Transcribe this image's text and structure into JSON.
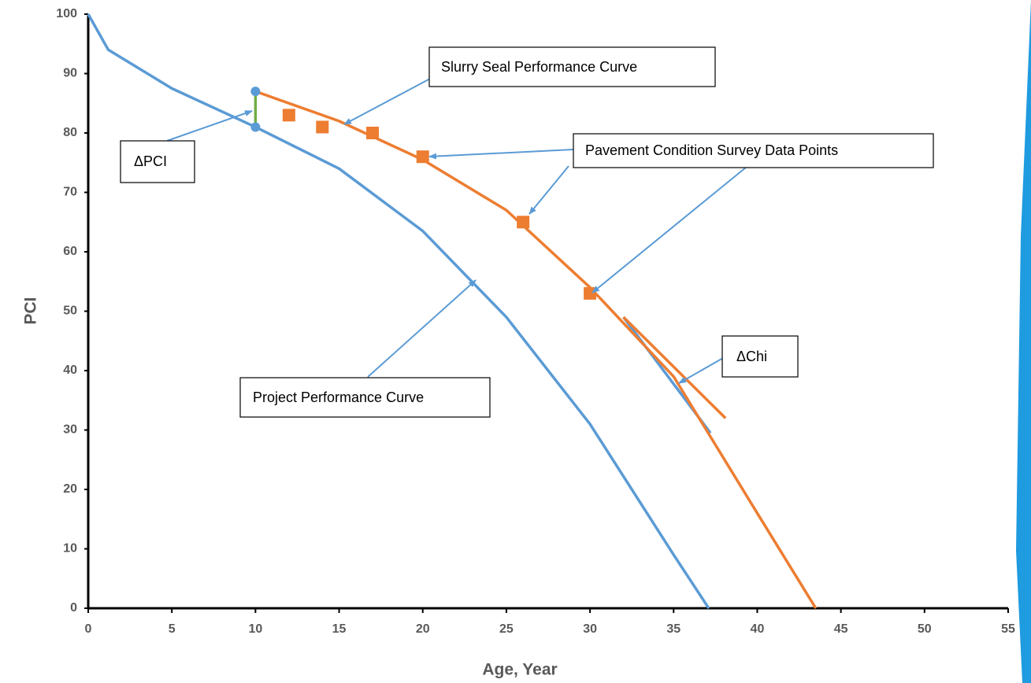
{
  "chart_data": {
    "type": "line",
    "x_label": "Age, Year",
    "y_label": "PCI",
    "xlim": [
      0,
      55
    ],
    "ylim": [
      0,
      100
    ],
    "xticks": [
      0,
      5,
      10,
      15,
      20,
      25,
      30,
      35,
      40,
      45,
      50,
      55
    ],
    "yticks": [
      0,
      10,
      20,
      30,
      40,
      50,
      60,
      70,
      80,
      90,
      100
    ],
    "grid": false,
    "series": [
      {
        "type": "line",
        "color": "#5b9bd5",
        "x": [
          37.2,
          32
        ],
        "values": [
          29.5,
          49
        ]
      },
      {
        "type": "line",
        "color": "#ed7d31",
        "x": [
          38.1,
          32
        ],
        "values": [
          32,
          49
        ]
      },
      {
        "type": "line",
        "color": "#5b9bd5",
        "x": [
          0,
          1.2,
          5,
          10,
          15,
          20,
          25,
          30,
          35,
          37.1
        ],
        "values": [
          100,
          94,
          87.5,
          81,
          74,
          63.5,
          49,
          31,
          9,
          0
        ]
      },
      {
        "type": "line",
        "color": "#ed7d31",
        "x": [
          10,
          15,
          20,
          25,
          30,
          35,
          40,
          43.5
        ],
        "values": [
          87,
          82,
          75.5,
          67,
          54,
          39,
          16,
          0
        ]
      },
      {
        "type": "line",
        "color": "#70ad47",
        "marker_color": "#5b9bd5",
        "x": [
          10,
          10
        ],
        "values": [
          81,
          87
        ]
      },
      {
        "type": "scatter",
        "color": "#ed7d31",
        "x": [
          12,
          14,
          17,
          20,
          26,
          30
        ],
        "values": [
          83,
          81,
          80,
          76,
          65,
          53
        ]
      }
    ],
    "annotations": [
      {
        "text": "Slurry Seal Performance Curve"
      },
      {
        "text": "Pavement Condition Survey Data Points"
      },
      {
        "text": "ΔPCI"
      },
      {
        "text": "ΔChi"
      },
      {
        "text": "Project Performance Curve"
      }
    ]
  }
}
